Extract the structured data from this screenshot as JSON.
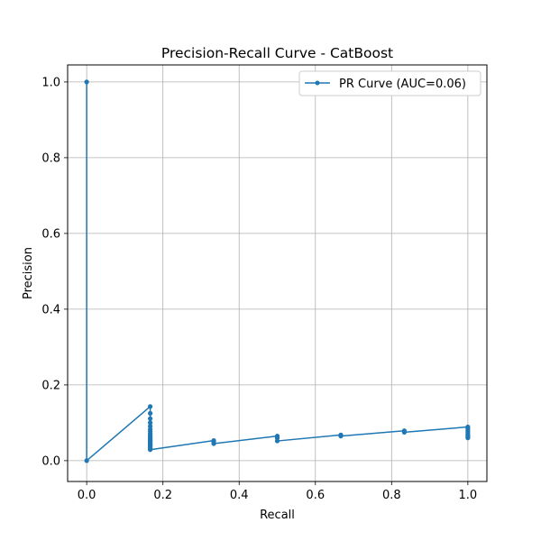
{
  "chart_data": {
    "type": "line",
    "title": "Precision-Recall Curve - CatBoost",
    "xlabel": "Recall",
    "ylabel": "Precision",
    "xlim": [
      -0.05,
      1.05
    ],
    "ylim": [
      -0.055,
      1.045
    ],
    "xticks": [
      "0.0",
      "0.2",
      "0.4",
      "0.6",
      "0.8",
      "1.0"
    ],
    "yticks": [
      "0.0",
      "0.2",
      "0.4",
      "0.6",
      "0.8",
      "1.0"
    ],
    "grid": true,
    "legend_position": "top-right",
    "color": "#1f77b4",
    "series": [
      {
        "name": "PR Curve (AUC=0.06)",
        "x": [
          0.0,
          0.0,
          0.1667,
          0.1667,
          0.1667,
          0.1667,
          0.1667,
          0.1667,
          0.1667,
          0.1667,
          0.1667,
          0.1667,
          0.1667,
          0.1667,
          0.1667,
          0.1667,
          0.1667,
          0.1667,
          0.1667,
          0.1667,
          0.1667,
          0.1667,
          0.1667,
          0.1667,
          0.1667,
          0.3333,
          0.3333,
          0.3333,
          0.5,
          0.5,
          0.5,
          0.6667,
          0.6667,
          0.8333,
          0.8333,
          1.0,
          1.0,
          1.0,
          1.0,
          1.0,
          1.0,
          1.0,
          1.0
        ],
        "y": [
          1.0,
          0.0,
          0.143,
          0.125,
          0.111,
          0.1,
          0.091,
          0.083,
          0.077,
          0.071,
          0.067,
          0.063,
          0.059,
          0.056,
          0.053,
          0.05,
          0.048,
          0.045,
          0.043,
          0.042,
          0.04,
          0.038,
          0.035,
          0.032,
          0.029,
          0.053,
          0.05,
          0.045,
          0.065,
          0.06,
          0.052,
          0.068,
          0.065,
          0.079,
          0.075,
          0.089,
          0.085,
          0.08,
          0.075,
          0.07,
          0.066,
          0.063,
          0.06
        ]
      }
    ]
  }
}
